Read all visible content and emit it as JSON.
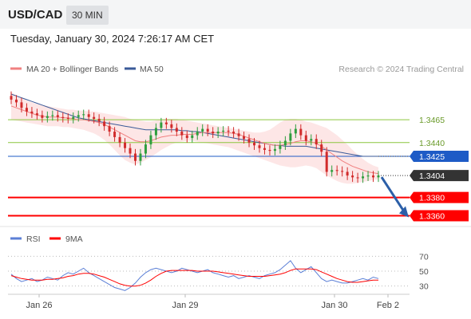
{
  "header": {
    "pair": "USD/CAD",
    "timeframe": "30 MIN"
  },
  "datetime": "Tuesday, January 30, 2024 7:26:17 AM CET",
  "legend": {
    "ma20": "MA 20 + Bollinger Bands",
    "ma50": "MA 50",
    "copyright": "Research © 2024 Trading Central",
    "rsi": "RSI",
    "ma9": "9MA"
  },
  "colors": {
    "ma20": "#f08080",
    "band": "#fcdede",
    "ma50": "#3a5a98",
    "support": "#ff0000",
    "resistance": "#8cc63f",
    "pivot": "#1e5bc6",
    "price_tag": "#333333",
    "arrow": "#2c5fa8",
    "rsi": "#5b7fd6",
    "candle_up": "#2e9e3e",
    "candle_down": "#d12b2b"
  },
  "chart_data": [
    {
      "type": "candlestick",
      "y_range": [
        1.335,
        1.35
      ],
      "x_ticks": [
        "Jan 26",
        "Jan 29",
        "Jan 30",
        "Feb 2"
      ],
      "levels": [
        {
          "value": 1.3465,
          "label": "1.3465",
          "kind": "resistance"
        },
        {
          "value": 1.344,
          "label": "1.3440",
          "kind": "resistance"
        },
        {
          "value": 1.3425,
          "label": "1.3425",
          "kind": "pivot"
        },
        {
          "value": 1.338,
          "label": "1.3380",
          "kind": "support"
        },
        {
          "value": 1.336,
          "label": "1.3360",
          "kind": "support"
        }
      ],
      "last_price": {
        "value": 1.3404,
        "label": "1.3404"
      },
      "close_path": [
        1.3487,
        1.3484,
        1.3478,
        1.3474,
        1.3472,
        1.347,
        1.3467,
        1.3469,
        1.347,
        1.3468,
        1.3467,
        1.3466,
        1.3468,
        1.347,
        1.3471,
        1.3468,
        1.3466,
        1.3463,
        1.3458,
        1.3452,
        1.3446,
        1.344,
        1.3434,
        1.3428,
        1.342,
        1.3428,
        1.3438,
        1.3448,
        1.3456,
        1.3462,
        1.346,
        1.3456,
        1.3452,
        1.3448,
        1.3445,
        1.3448,
        1.3452,
        1.3455,
        1.3452,
        1.345,
        1.3452,
        1.3453,
        1.3452,
        1.345,
        1.3447,
        1.3444,
        1.344,
        1.3437,
        1.3434,
        1.3432,
        1.3431,
        1.3433,
        1.3437,
        1.3442,
        1.345,
        1.3455,
        1.3448,
        1.3442,
        1.3444,
        1.3438,
        1.343,
        1.3408,
        1.341,
        1.3409,
        1.3408,
        1.3404,
        1.3402,
        1.3401,
        1.3403,
        1.3404,
        1.3402,
        1.3404
      ],
      "ma20_path": [
        1.348,
        1.3478,
        1.3476,
        1.3474,
        1.3472,
        1.347,
        1.3469,
        1.3468,
        1.3468,
        1.3468,
        1.3467,
        1.3467,
        1.3466,
        1.3465,
        1.3465,
        1.3464,
        1.3463,
        1.3462,
        1.346,
        1.3457,
        1.3454,
        1.3451,
        1.3448,
        1.3445,
        1.3442,
        1.3441,
        1.3441,
        1.3442,
        1.3444,
        1.3446,
        1.3447,
        1.3448,
        1.3448,
        1.3449,
        1.3449,
        1.3449,
        1.345,
        1.3451,
        1.3451,
        1.3451,
        1.3451,
        1.3451,
        1.3451,
        1.345,
        1.3449,
        1.3447,
        1.3445,
        1.3443,
        1.3441,
        1.3439,
        1.3438,
        1.3437,
        1.3437,
        1.3438,
        1.3439,
        1.3441,
        1.3442,
        1.3442,
        1.3441,
        1.3439,
        1.3436,
        1.3432,
        1.3428,
        1.3424,
        1.342,
        1.3417,
        1.3414,
        1.3412,
        1.341,
        1.3408,
        1.3407,
        1.3406
      ],
      "ma50_path": [
        1.3493,
        1.3491,
        1.3489,
        1.3487,
        1.3485,
        1.3483,
        1.3481,
        1.3479,
        1.3477,
        1.3475,
        1.3473,
        1.3471,
        1.3469,
        1.3467,
        1.3466,
        1.3465,
        1.3464,
        1.3463,
        1.3462,
        1.3461,
        1.346,
        1.3459,
        1.3458,
        1.3457,
        1.3456,
        1.3455,
        1.3454,
        1.3454,
        1.3454,
        1.3454,
        1.3454,
        1.3454,
        1.3454,
        1.3453,
        1.3453,
        1.3452,
        1.3452,
        1.3451,
        1.345,
        1.3449,
        1.3448,
        1.3447,
        1.3446,
        1.3445,
        1.3444,
        1.3443,
        1.3442,
        1.3441,
        1.344,
        1.3439,
        1.3438,
        1.3437,
        1.3437,
        1.3436,
        1.3436,
        1.3436,
        1.3436,
        1.3436,
        1.3435,
        1.3434,
        1.3433,
        1.3432,
        1.3431,
        1.343,
        1.3429,
        1.3428,
        1.3427,
        1.3426,
        1.3425,
        1.3425,
        1.3425,
        1.3425
      ],
      "band_upper": [
        1.3495,
        1.3492,
        1.3489,
        1.3486,
        1.3484,
        1.3482,
        1.3481,
        1.348,
        1.3479,
        1.3478,
        1.3477,
        1.3476,
        1.3476,
        1.3475,
        1.3475,
        1.3474,
        1.3474,
        1.3473,
        1.3472,
        1.3471,
        1.347,
        1.3469,
        1.3468,
        1.3466,
        1.3465,
        1.3464,
        1.3463,
        1.3463,
        1.3464,
        1.3465,
        1.3466,
        1.3466,
        1.3466,
        1.3465,
        1.3464,
        1.3463,
        1.3462,
        1.3461,
        1.346,
        1.3459,
        1.3458,
        1.3457,
        1.3456,
        1.3455,
        1.3454,
        1.3453,
        1.3452,
        1.3451,
        1.3451,
        1.3452,
        1.3454,
        1.3458,
        1.3462,
        1.3465,
        1.3466,
        1.3466,
        1.3465,
        1.3463,
        1.3462,
        1.346,
        1.3458,
        1.3456,
        1.3452,
        1.3448,
        1.3443,
        1.3438,
        1.3432,
        1.3427,
        1.3422,
        1.3418,
        1.3415,
        1.3413
      ],
      "band_lower": [
        1.3465,
        1.3464,
        1.3463,
        1.3462,
        1.3461,
        1.346,
        1.3459,
        1.3458,
        1.3458,
        1.3458,
        1.3457,
        1.3457,
        1.3456,
        1.3455,
        1.3454,
        1.3452,
        1.345,
        1.3447,
        1.3443,
        1.3438,
        1.3432,
        1.3426,
        1.3421,
        1.3418,
        1.3416,
        1.3418,
        1.3421,
        1.3424,
        1.3428,
        1.3432,
        1.3435,
        1.3438,
        1.344,
        1.3441,
        1.3442,
        1.3442,
        1.3441,
        1.344,
        1.3439,
        1.3438,
        1.3437,
        1.3436,
        1.3435,
        1.3433,
        1.3431,
        1.3429,
        1.3427,
        1.3425,
        1.3423,
        1.3421,
        1.3419,
        1.3417,
        1.3415,
        1.3414,
        1.3413,
        1.3413,
        1.3414,
        1.3415,
        1.3414,
        1.3412,
        1.3408,
        1.3404,
        1.3401,
        1.3398,
        1.3396,
        1.3395,
        1.3395,
        1.3396,
        1.3397,
        1.3398,
        1.3399,
        1.34
      ],
      "forecast_target": 1.336
    },
    {
      "type": "line",
      "y_range": [
        20,
        80
      ],
      "y_ticks": [
        "70",
        "50",
        "30"
      ],
      "y_tick_values": [
        70,
        50,
        30
      ],
      "series": [
        {
          "name": "RSI",
          "values": [
            46,
            40,
            36,
            38,
            40,
            36,
            38,
            42,
            40,
            38,
            44,
            48,
            46,
            50,
            54,
            48,
            44,
            40,
            36,
            32,
            28,
            26,
            24,
            28,
            34,
            42,
            48,
            52,
            54,
            52,
            50,
            48,
            50,
            54,
            52,
            50,
            48,
            50,
            52,
            48,
            46,
            44,
            42,
            44,
            40,
            42,
            44,
            42,
            40,
            44,
            46,
            48,
            52,
            58,
            64,
            54,
            48,
            52,
            56,
            48,
            40,
            36,
            38,
            36,
            34,
            34,
            36,
            38,
            40,
            38,
            42,
            40
          ]
        },
        {
          "name": "9MA",
          "values": [
            44,
            42,
            40,
            39,
            38,
            38,
            38,
            39,
            39,
            40,
            41,
            43,
            44,
            46,
            47,
            47,
            46,
            44,
            42,
            39,
            36,
            33,
            31,
            30,
            30,
            31,
            34,
            38,
            43,
            47,
            50,
            51,
            51,
            51,
            51,
            51,
            50,
            50,
            50,
            50,
            49,
            48,
            47,
            46,
            45,
            44,
            43,
            43,
            43,
            43,
            44,
            45,
            46,
            48,
            51,
            53,
            53,
            53,
            53,
            52,
            49,
            46,
            43,
            40,
            38,
            36,
            35,
            35,
            36,
            37,
            38,
            38
          ]
        }
      ]
    }
  ]
}
